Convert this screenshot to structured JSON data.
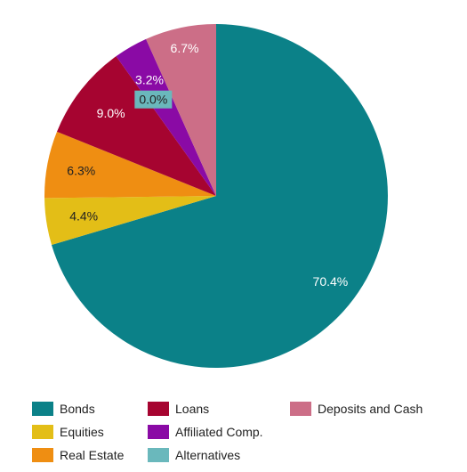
{
  "chart_data": {
    "type": "pie",
    "start_angle_deg": 0,
    "direction": "clockwise",
    "legend_position": "bottom",
    "slices": [
      {
        "name": "Bonds",
        "value": 70.4,
        "label": "70.4%",
        "color": "#0b8188",
        "label_color": "#ffffff"
      },
      {
        "name": "Equities",
        "value": 4.4,
        "label": "4.4%",
        "color": "#e3be17",
        "label_color": "#222222"
      },
      {
        "name": "Real Estate",
        "value": 6.3,
        "label": "6.3%",
        "color": "#ef8e12",
        "label_color": "#222222"
      },
      {
        "name": "Loans",
        "value": 9.0,
        "label": "9.0%",
        "color": "#a60430",
        "label_color": "#ffffff"
      },
      {
        "name": "Affiliated Comp.",
        "value": 3.2,
        "label": "3.2%",
        "color": "#8a0aa5",
        "label_color": "#ffffff"
      },
      {
        "name": "Alternatives",
        "value": 0.0,
        "label": "0.0%",
        "color": "#6ab8bc",
        "label_color": "#222222"
      },
      {
        "name": "Deposits and Cash",
        "value": 6.7,
        "label": "6.7%",
        "color": "#cc6e87",
        "label_color": "#ffffff"
      }
    ]
  }
}
